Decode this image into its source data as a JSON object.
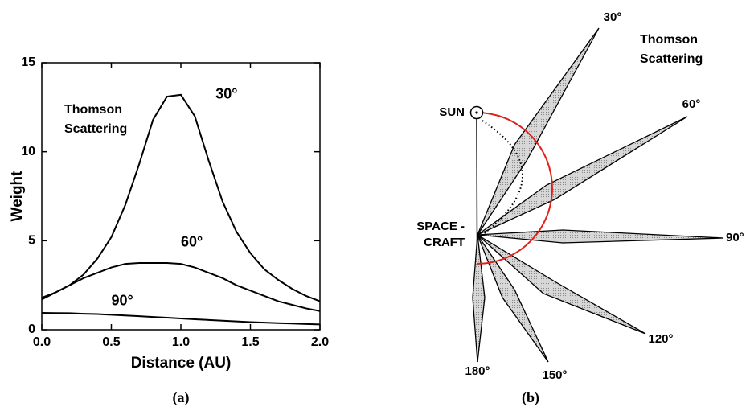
{
  "chart_data": {
    "type": "line",
    "panel_label": "(a)",
    "xlabel": "Distance (AU)",
    "ylabel": "Weight",
    "annotation": [
      "Thomson",
      "Scattering"
    ],
    "x": [
      0,
      0.1,
      0.2,
      0.3,
      0.4,
      0.5,
      0.6,
      0.7,
      0.8,
      0.9,
      1.0,
      1.1,
      1.2,
      1.3,
      1.4,
      1.5,
      1.6,
      1.7,
      1.8,
      1.9,
      2.0
    ],
    "series": [
      {
        "name": "30°",
        "color": "#000000",
        "values": [
          1.8,
          2.1,
          2.5,
          3.1,
          4.0,
          5.2,
          7.0,
          9.3,
          11.8,
          13.1,
          13.2,
          12.0,
          9.5,
          7.2,
          5.5,
          4.3,
          3.4,
          2.8,
          2.3,
          1.9,
          1.6
        ]
      },
      {
        "name": "60°",
        "color": "#000000",
        "values": [
          1.7,
          2.1,
          2.5,
          2.9,
          3.2,
          3.5,
          3.7,
          3.75,
          3.75,
          3.75,
          3.7,
          3.5,
          3.2,
          2.9,
          2.5,
          2.2,
          1.9,
          1.6,
          1.4,
          1.2,
          1.05
        ]
      },
      {
        "name": "90°",
        "color": "#000000",
        "values": [
          0.95,
          0.94,
          0.93,
          0.9,
          0.88,
          0.84,
          0.8,
          0.76,
          0.72,
          0.68,
          0.63,
          0.59,
          0.55,
          0.51,
          0.47,
          0.43,
          0.4,
          0.37,
          0.35,
          0.32,
          0.3
        ]
      }
    ],
    "xlim": [
      0,
      2
    ],
    "ylim": [
      0,
      15
    ],
    "xticks": [
      {
        "value": 0,
        "label": "0.0"
      },
      0.5,
      {
        "value": 1,
        "label": "1.0"
      },
      1.5,
      {
        "value": 2,
        "label": "2.0"
      }
    ],
    "yticks": [
      0,
      5,
      10,
      15
    ],
    "grid": false
  },
  "diagram": {
    "panel_label": "(b)",
    "title": [
      "Thomson",
      "Scattering"
    ],
    "sun": "SUN",
    "spacecraft": [
      "SPACE -",
      "CRAFT"
    ],
    "angles": [
      "30°",
      "60°",
      "90°",
      "120°",
      "150°",
      "180°"
    ]
  }
}
